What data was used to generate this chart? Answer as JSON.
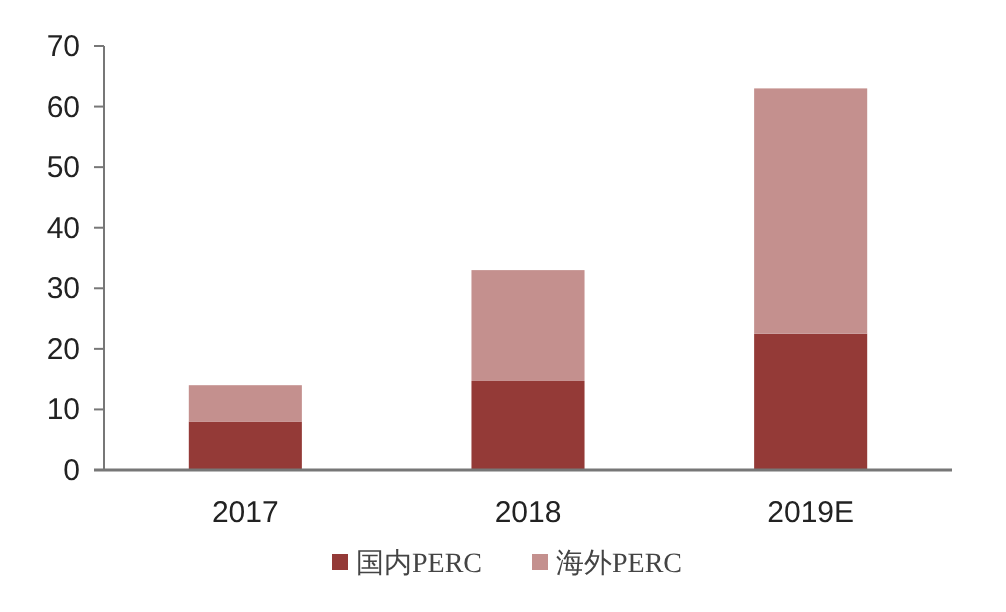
{
  "chart_data": {
    "type": "bar",
    "stacked": true,
    "categories": [
      "2017",
      "2018",
      "2019E"
    ],
    "series": [
      {
        "name": "国内PERC",
        "color": "#943a37",
        "values": [
          8,
          14.7,
          22.5
        ]
      },
      {
        "name": "海外PERC",
        "color": "#c4908e",
        "values": [
          6,
          18.3,
          40.5
        ]
      }
    ],
    "ylim": [
      0,
      70
    ],
    "yticks": [
      0,
      10,
      20,
      30,
      40,
      50,
      60,
      70
    ],
    "grid": false,
    "legend": "bottom"
  }
}
